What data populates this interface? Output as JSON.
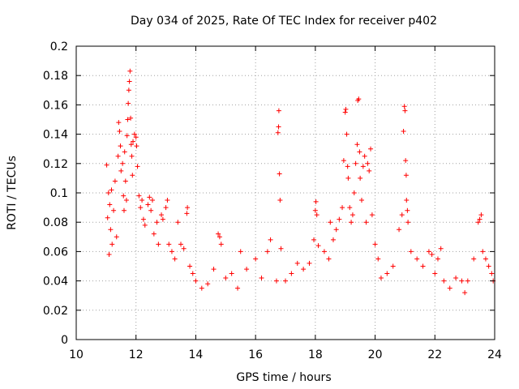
{
  "chart_data": {
    "type": "scatter",
    "title": "Day 034 of 2025, Rate Of TEC Index for receiver p402",
    "xlabel": "GPS time / hours",
    "ylabel": "ROTI / TECUs",
    "xlim": [
      10,
      24
    ],
    "ylim": [
      0,
      0.2
    ],
    "x_ticks": [
      10,
      12,
      14,
      16,
      18,
      20,
      22,
      24
    ],
    "y_ticks": [
      0,
      0.02,
      0.04,
      0.06,
      0.08,
      0.1,
      0.12,
      0.14,
      0.16,
      0.18,
      0.2
    ],
    "x_tick_labels": [
      "10",
      "12",
      "14",
      "16",
      "18",
      "20",
      "22",
      "24"
    ],
    "y_tick_labels": [
      "0",
      "0.02",
      "0.04",
      "0.06",
      "0.08",
      "0.1",
      "0.12",
      "0.14",
      "0.16",
      "0.18",
      "0.2"
    ],
    "grid": true,
    "marker": "+",
    "series": [
      {
        "name": "ROTI",
        "color": "#ff0000",
        "points": [
          [
            11.02,
            0.119
          ],
          [
            11.05,
            0.083
          ],
          [
            11.08,
            0.1
          ],
          [
            11.1,
            0.058
          ],
          [
            11.12,
            0.092
          ],
          [
            11.15,
            0.075
          ],
          [
            11.18,
            0.102
          ],
          [
            11.2,
            0.065
          ],
          [
            11.25,
            0.088
          ],
          [
            11.3,
            0.108
          ],
          [
            11.35,
            0.07
          ],
          [
            11.4,
            0.125
          ],
          [
            11.42,
            0.148
          ],
          [
            11.45,
            0.142
          ],
          [
            11.48,
            0.132
          ],
          [
            11.5,
            0.115
          ],
          [
            11.55,
            0.12
          ],
          [
            11.58,
            0.098
          ],
          [
            11.6,
            0.088
          ],
          [
            11.62,
            0.128
          ],
          [
            11.65,
            0.108
          ],
          [
            11.68,
            0.095
          ],
          [
            11.7,
            0.139
          ],
          [
            11.72,
            0.15
          ],
          [
            11.74,
            0.161
          ],
          [
            11.76,
            0.17
          ],
          [
            11.78,
            0.176
          ],
          [
            11.8,
            0.183
          ],
          [
            11.82,
            0.151
          ],
          [
            11.84,
            0.133
          ],
          [
            11.86,
            0.125
          ],
          [
            11.88,
            0.112
          ],
          [
            11.9,
            0.135
          ],
          [
            11.95,
            0.14
          ],
          [
            12.0,
            0.138
          ],
          [
            12.02,
            0.132
          ],
          [
            12.05,
            0.118
          ],
          [
            12.1,
            0.098
          ],
          [
            12.15,
            0.09
          ],
          [
            12.2,
            0.095
          ],
          [
            12.25,
            0.082
          ],
          [
            12.3,
            0.078
          ],
          [
            12.4,
            0.092
          ],
          [
            12.45,
            0.097
          ],
          [
            12.5,
            0.088
          ],
          [
            12.55,
            0.095
          ],
          [
            12.6,
            0.072
          ],
          [
            12.7,
            0.08
          ],
          [
            12.75,
            0.065
          ],
          [
            12.85,
            0.085
          ],
          [
            12.9,
            0.082
          ],
          [
            13.0,
            0.09
          ],
          [
            13.05,
            0.095
          ],
          [
            13.1,
            0.065
          ],
          [
            13.2,
            0.06
          ],
          [
            13.3,
            0.055
          ],
          [
            13.4,
            0.08
          ],
          [
            13.5,
            0.065
          ],
          [
            13.6,
            0.062
          ],
          [
            13.7,
            0.086
          ],
          [
            13.72,
            0.09
          ],
          [
            13.8,
            0.05
          ],
          [
            13.9,
            0.045
          ],
          [
            14.0,
            0.04
          ],
          [
            14.2,
            0.035
          ],
          [
            14.4,
            0.038
          ],
          [
            14.6,
            0.048
          ],
          [
            14.75,
            0.072
          ],
          [
            14.8,
            0.07
          ],
          [
            14.85,
            0.065
          ],
          [
            15.0,
            0.042
          ],
          [
            15.2,
            0.045
          ],
          [
            15.4,
            0.035
          ],
          [
            15.5,
            0.06
          ],
          [
            15.7,
            0.048
          ],
          [
            16.0,
            0.055
          ],
          [
            16.2,
            0.042
          ],
          [
            16.4,
            0.06
          ],
          [
            16.5,
            0.068
          ],
          [
            16.7,
            0.04
          ],
          [
            16.75,
            0.141
          ],
          [
            16.77,
            0.145
          ],
          [
            16.78,
            0.156
          ],
          [
            16.8,
            0.113
          ],
          [
            16.82,
            0.095
          ],
          [
            16.85,
            0.062
          ],
          [
            17.0,
            0.04
          ],
          [
            17.2,
            0.045
          ],
          [
            17.4,
            0.052
          ],
          [
            17.6,
            0.048
          ],
          [
            17.8,
            0.052
          ],
          [
            17.95,
            0.068
          ],
          [
            18.0,
            0.088
          ],
          [
            18.02,
            0.094
          ],
          [
            18.05,
            0.085
          ],
          [
            18.1,
            0.064
          ],
          [
            18.3,
            0.06
          ],
          [
            18.45,
            0.055
          ],
          [
            18.5,
            0.08
          ],
          [
            18.6,
            0.068
          ],
          [
            18.7,
            0.075
          ],
          [
            18.8,
            0.082
          ],
          [
            18.9,
            0.09
          ],
          [
            18.95,
            0.122
          ],
          [
            19.0,
            0.155
          ],
          [
            19.02,
            0.157
          ],
          [
            19.05,
            0.14
          ],
          [
            19.08,
            0.118
          ],
          [
            19.1,
            0.11
          ],
          [
            19.15,
            0.09
          ],
          [
            19.2,
            0.08
          ],
          [
            19.25,
            0.085
          ],
          [
            19.3,
            0.1
          ],
          [
            19.35,
            0.12
          ],
          [
            19.4,
            0.133
          ],
          [
            19.42,
            0.163
          ],
          [
            19.45,
            0.164
          ],
          [
            19.48,
            0.128
          ],
          [
            19.5,
            0.11
          ],
          [
            19.55,
            0.095
          ],
          [
            19.6,
            0.118
          ],
          [
            19.65,
            0.125
          ],
          [
            19.7,
            0.08
          ],
          [
            19.75,
            0.12
          ],
          [
            19.8,
            0.115
          ],
          [
            19.85,
            0.13
          ],
          [
            19.9,
            0.085
          ],
          [
            20.0,
            0.065
          ],
          [
            20.1,
            0.055
          ],
          [
            20.2,
            0.042
          ],
          [
            20.4,
            0.045
          ],
          [
            20.6,
            0.05
          ],
          [
            20.8,
            0.075
          ],
          [
            20.9,
            0.085
          ],
          [
            20.95,
            0.142
          ],
          [
            20.98,
            0.159
          ],
          [
            21.0,
            0.156
          ],
          [
            21.02,
            0.122
          ],
          [
            21.04,
            0.112
          ],
          [
            21.05,
            0.095
          ],
          [
            21.08,
            0.088
          ],
          [
            21.1,
            0.08
          ],
          [
            21.2,
            0.06
          ],
          [
            21.4,
            0.055
          ],
          [
            21.6,
            0.05
          ],
          [
            21.8,
            0.06
          ],
          [
            21.9,
            0.058
          ],
          [
            22.0,
            0.045
          ],
          [
            22.1,
            0.055
          ],
          [
            22.2,
            0.062
          ],
          [
            22.3,
            0.04
          ],
          [
            22.5,
            0.035
          ],
          [
            22.7,
            0.042
          ],
          [
            22.9,
            0.04
          ],
          [
            23.0,
            0.032
          ],
          [
            23.1,
            0.04
          ],
          [
            23.3,
            0.055
          ],
          [
            23.45,
            0.08
          ],
          [
            23.5,
            0.082
          ],
          [
            23.55,
            0.085
          ],
          [
            23.6,
            0.06
          ],
          [
            23.7,
            0.055
          ],
          [
            23.8,
            0.05
          ],
          [
            23.9,
            0.045
          ],
          [
            23.95,
            0.04
          ]
        ]
      }
    ]
  }
}
